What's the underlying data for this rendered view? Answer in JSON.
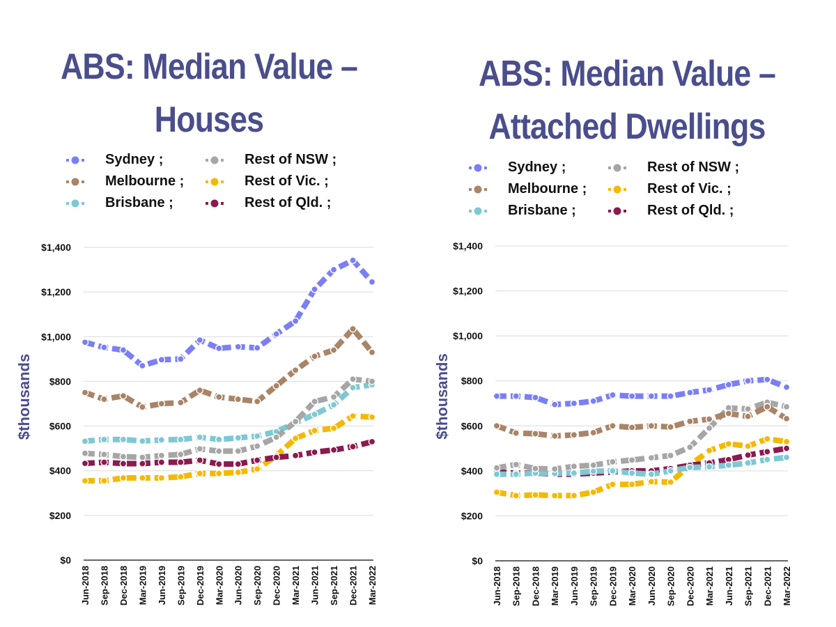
{
  "chart_data": [
    {
      "type": "line",
      "title": "ABS: Median Value – Houses",
      "xlabel": "",
      "ylabel": "$thousands",
      "ylim": [
        0,
        1400
      ],
      "yticks": [
        0,
        200,
        400,
        600,
        800,
        1000,
        1200,
        1400
      ],
      "ytick_labels": [
        "$0",
        "$200",
        "$400",
        "$600",
        "$800",
        "$1,000",
        "$1,200",
        "$1,400"
      ],
      "grid": true,
      "legend_position": "top",
      "categories": [
        "Jun-2018",
        "Sep-2018",
        "Dec-2018",
        "Mar-2019",
        "Jun-2019",
        "Sep-2019",
        "Dec-2019",
        "Mar-2020",
        "Jun-2020",
        "Sep-2020",
        "Dec-2020",
        "Mar-2021",
        "Jun-2021",
        "Sep-2021",
        "Dec-2021",
        "Mar-2022"
      ],
      "series": [
        {
          "name": "Sydney ;",
          "color": "#7b7ff5",
          "values": [
            975,
            952,
            940,
            870,
            897,
            900,
            985,
            948,
            955,
            950,
            1012,
            1070,
            1212,
            1300,
            1342,
            1245
          ]
        },
        {
          "name": "Melbourne ;",
          "color": "#a98467",
          "values": [
            750,
            720,
            735,
            685,
            700,
            705,
            760,
            730,
            720,
            710,
            780,
            850,
            912,
            940,
            1035,
            930
          ]
        },
        {
          "name": "Brisbane ;",
          "color": "#7ec8d4",
          "values": [
            532,
            540,
            540,
            533,
            538,
            540,
            550,
            540,
            547,
            555,
            575,
            615,
            652,
            695,
            772,
            785
          ]
        },
        {
          "name": "Rest of NSW ;",
          "color": "#a6a6a6",
          "values": [
            478,
            473,
            463,
            460,
            468,
            473,
            498,
            488,
            488,
            510,
            550,
            620,
            710,
            730,
            810,
            800
          ]
        },
        {
          "name": "Rest of Vic. ;",
          "color": "#f5b800",
          "values": [
            355,
            355,
            368,
            368,
            368,
            373,
            388,
            388,
            393,
            408,
            467,
            545,
            580,
            590,
            645,
            640
          ]
        },
        {
          "name": "Rest of Qld. ;",
          "color": "#8b1a4f",
          "values": [
            433,
            438,
            432,
            432,
            438,
            438,
            447,
            430,
            430,
            447,
            460,
            468,
            483,
            493,
            508,
            530
          ]
        }
      ]
    },
    {
      "type": "line",
      "title": "ABS: Median Value – Attached Dwellings",
      "xlabel": "",
      "ylabel": "$thousands",
      "ylim": [
        0,
        1400
      ],
      "yticks": [
        0,
        200,
        400,
        600,
        800,
        1000,
        1200,
        1400
      ],
      "ytick_labels": [
        "$0",
        "$200",
        "$400",
        "$600",
        "$800",
        "$1,000",
        "$1,200",
        "$1,400"
      ],
      "grid": true,
      "legend_position": "top",
      "categories": [
        "Jun-2018",
        "Sep-2018",
        "Dec-2018",
        "Mar-2019",
        "Jun-2019",
        "Sep-2019",
        "Dec-2019",
        "Mar-2020",
        "Jun-2020",
        "Sep-2020",
        "Dec-2020",
        "Mar-2021",
        "Jun-2021",
        "Sep-2021",
        "Dec-2021",
        "Mar-2022"
      ],
      "series": [
        {
          "name": "Sydney ;",
          "color": "#7b7ff5",
          "values": [
            732,
            732,
            726,
            695,
            700,
            710,
            737,
            732,
            732,
            732,
            748,
            760,
            783,
            800,
            806,
            772
          ]
        },
        {
          "name": "Melbourne ;",
          "color": "#a98467",
          "values": [
            600,
            568,
            565,
            555,
            560,
            570,
            600,
            593,
            600,
            595,
            620,
            630,
            655,
            642,
            685,
            632
          ]
        },
        {
          "name": "Brisbane ;",
          "color": "#7ec8d4",
          "values": [
            385,
            385,
            390,
            388,
            390,
            398,
            400,
            390,
            385,
            400,
            415,
            418,
            425,
            435,
            450,
            460
          ]
        },
        {
          "name": "Rest of NSW ;",
          "color": "#a6a6a6",
          "values": [
            413,
            428,
            410,
            408,
            420,
            425,
            440,
            448,
            458,
            468,
            505,
            590,
            680,
            675,
            705,
            685
          ]
        },
        {
          "name": "Rest of Vic. ;",
          "color": "#f5b800",
          "values": [
            305,
            290,
            293,
            290,
            290,
            305,
            340,
            340,
            352,
            350,
            425,
            490,
            520,
            510,
            542,
            530
          ]
        },
        {
          "name": "Rest of Qld. ;",
          "color": "#8b1a4f",
          "values": [
            395,
            390,
            390,
            385,
            385,
            390,
            395,
            400,
            400,
            410,
            425,
            435,
            450,
            470,
            485,
            500
          ]
        }
      ]
    }
  ]
}
